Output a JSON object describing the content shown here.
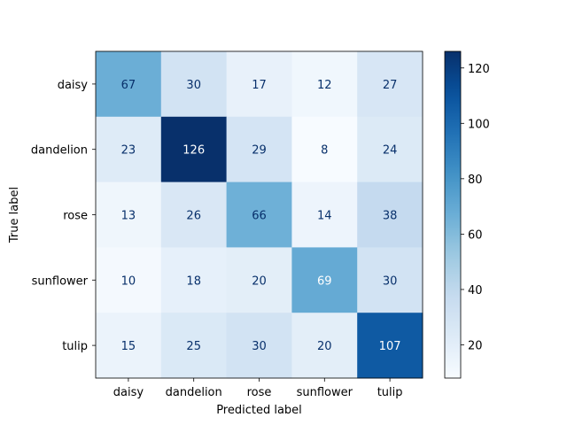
{
  "chart_data": {
    "type": "heatmap",
    "title": "",
    "xlabel": "Predicted label",
    "ylabel": "True label",
    "x_categories": [
      "daisy",
      "dandelion",
      "rose",
      "sunflower",
      "tulip"
    ],
    "y_categories": [
      "daisy",
      "dandelion",
      "rose",
      "sunflower",
      "tulip"
    ],
    "values": [
      [
        67,
        30,
        17,
        12,
        27
      ],
      [
        23,
        126,
        29,
        8,
        24
      ],
      [
        13,
        26,
        66,
        14,
        38
      ],
      [
        10,
        18,
        20,
        69,
        30
      ],
      [
        15,
        25,
        30,
        20,
        107
      ]
    ],
    "colormap": "Blues",
    "value_range": [
      8,
      126
    ],
    "colorbar_ticks": [
      20,
      40,
      60,
      80,
      100,
      120
    ],
    "grid": false,
    "legend": "colorbar-right"
  }
}
